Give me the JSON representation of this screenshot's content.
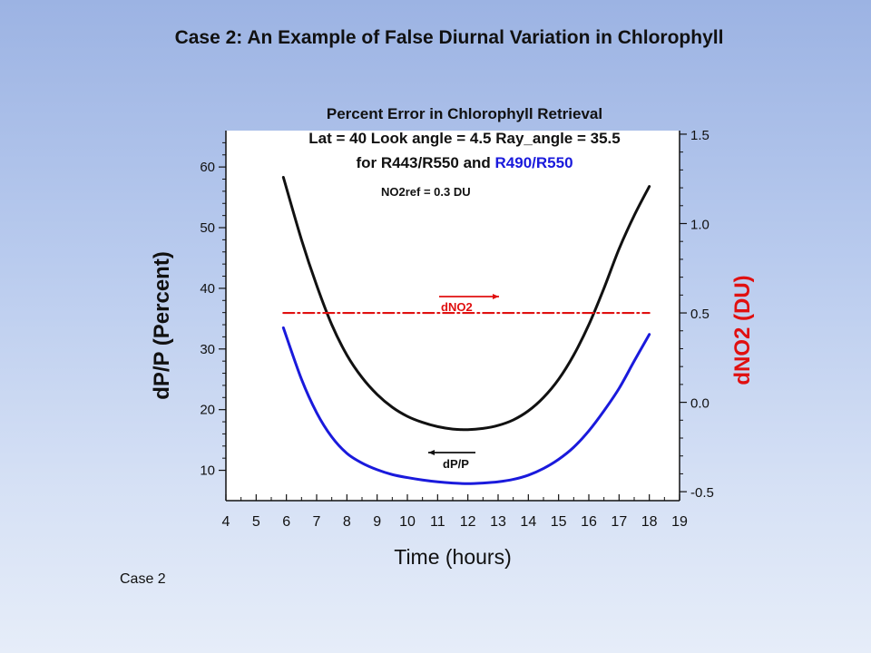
{
  "slide": {
    "title": "Case 2: An Example of False Diurnal Variation in Chlorophyll",
    "footer": "Case 2"
  },
  "chart_data": {
    "type": "line",
    "title_lines": [
      "Percent Error in Chlorophyll Retrieval",
      "Lat = 40 Look angle = 4.5  Ray_angle = 35.5"
    ],
    "subtitle_parts": [
      {
        "text": "for R443/R550  and ",
        "color": "#000000"
      },
      {
        "text": "R490/R550",
        "color": "#1a1adc"
      }
    ],
    "annotation": "NO2ref = 0.3 DU",
    "xlabel": "Time (hours)",
    "ylabel": "dP/P (Percent)",
    "y2label": "dNO2 (DU)",
    "xlim": [
      4,
      19
    ],
    "ylim": [
      5,
      66
    ],
    "y2lim": [
      -0.55,
      1.52
    ],
    "x_ticks": [
      "4",
      "5",
      "6",
      "7",
      "8",
      "9",
      "10",
      "11",
      "12",
      "13",
      "14",
      "15",
      "16",
      "17",
      "18",
      "19"
    ],
    "y_ticks": [
      "10",
      "20",
      "30",
      "40",
      "50",
      "60"
    ],
    "y2_ticks": [
      "-0.5",
      "0.0",
      "0.5",
      "1.0",
      "1.5"
    ],
    "curve_labels": {
      "dno2": "dNO2",
      "dpp": "dP/P"
    },
    "series": [
      {
        "name": "R443/R550",
        "axis": "left",
        "color": "#111111",
        "x": [
          5.9,
          6.5,
          7,
          7.5,
          8,
          8.5,
          9,
          9.5,
          10,
          10.5,
          11,
          11.5,
          12,
          12.5,
          13,
          13.5,
          14,
          14.5,
          15,
          15.5,
          16,
          16.5,
          17,
          17.5,
          18
        ],
        "y": [
          58.3,
          48.0,
          40.5,
          34.0,
          29.0,
          25.3,
          22.5,
          20.4,
          18.9,
          17.9,
          17.2,
          16.8,
          16.7,
          16.9,
          17.4,
          18.3,
          19.8,
          22.0,
          25.0,
          29.0,
          34.0,
          40.0,
          46.5,
          52.0,
          56.8
        ]
      },
      {
        "name": "R490/R550",
        "axis": "left",
        "color": "#1a1adc",
        "x": [
          5.9,
          6.5,
          7,
          7.5,
          8,
          8.5,
          9,
          9.5,
          10,
          10.5,
          11,
          11.5,
          12,
          12.5,
          13,
          13.5,
          14,
          14.5,
          15,
          15.5,
          16,
          16.5,
          17,
          17.5,
          18
        ],
        "y": [
          33.5,
          25.0,
          19.5,
          15.5,
          12.8,
          11.2,
          10.1,
          9.3,
          8.8,
          8.4,
          8.1,
          7.9,
          7.8,
          7.9,
          8.1,
          8.5,
          9.2,
          10.3,
          11.8,
          13.8,
          16.5,
          19.8,
          23.5,
          28.0,
          32.4
        ]
      },
      {
        "name": "dNO2",
        "axis": "right",
        "color": "#e01010",
        "dash": "dashdot",
        "x": [
          5.9,
          18
        ],
        "y": [
          0.5,
          0.5
        ]
      }
    ],
    "grid": false
  }
}
